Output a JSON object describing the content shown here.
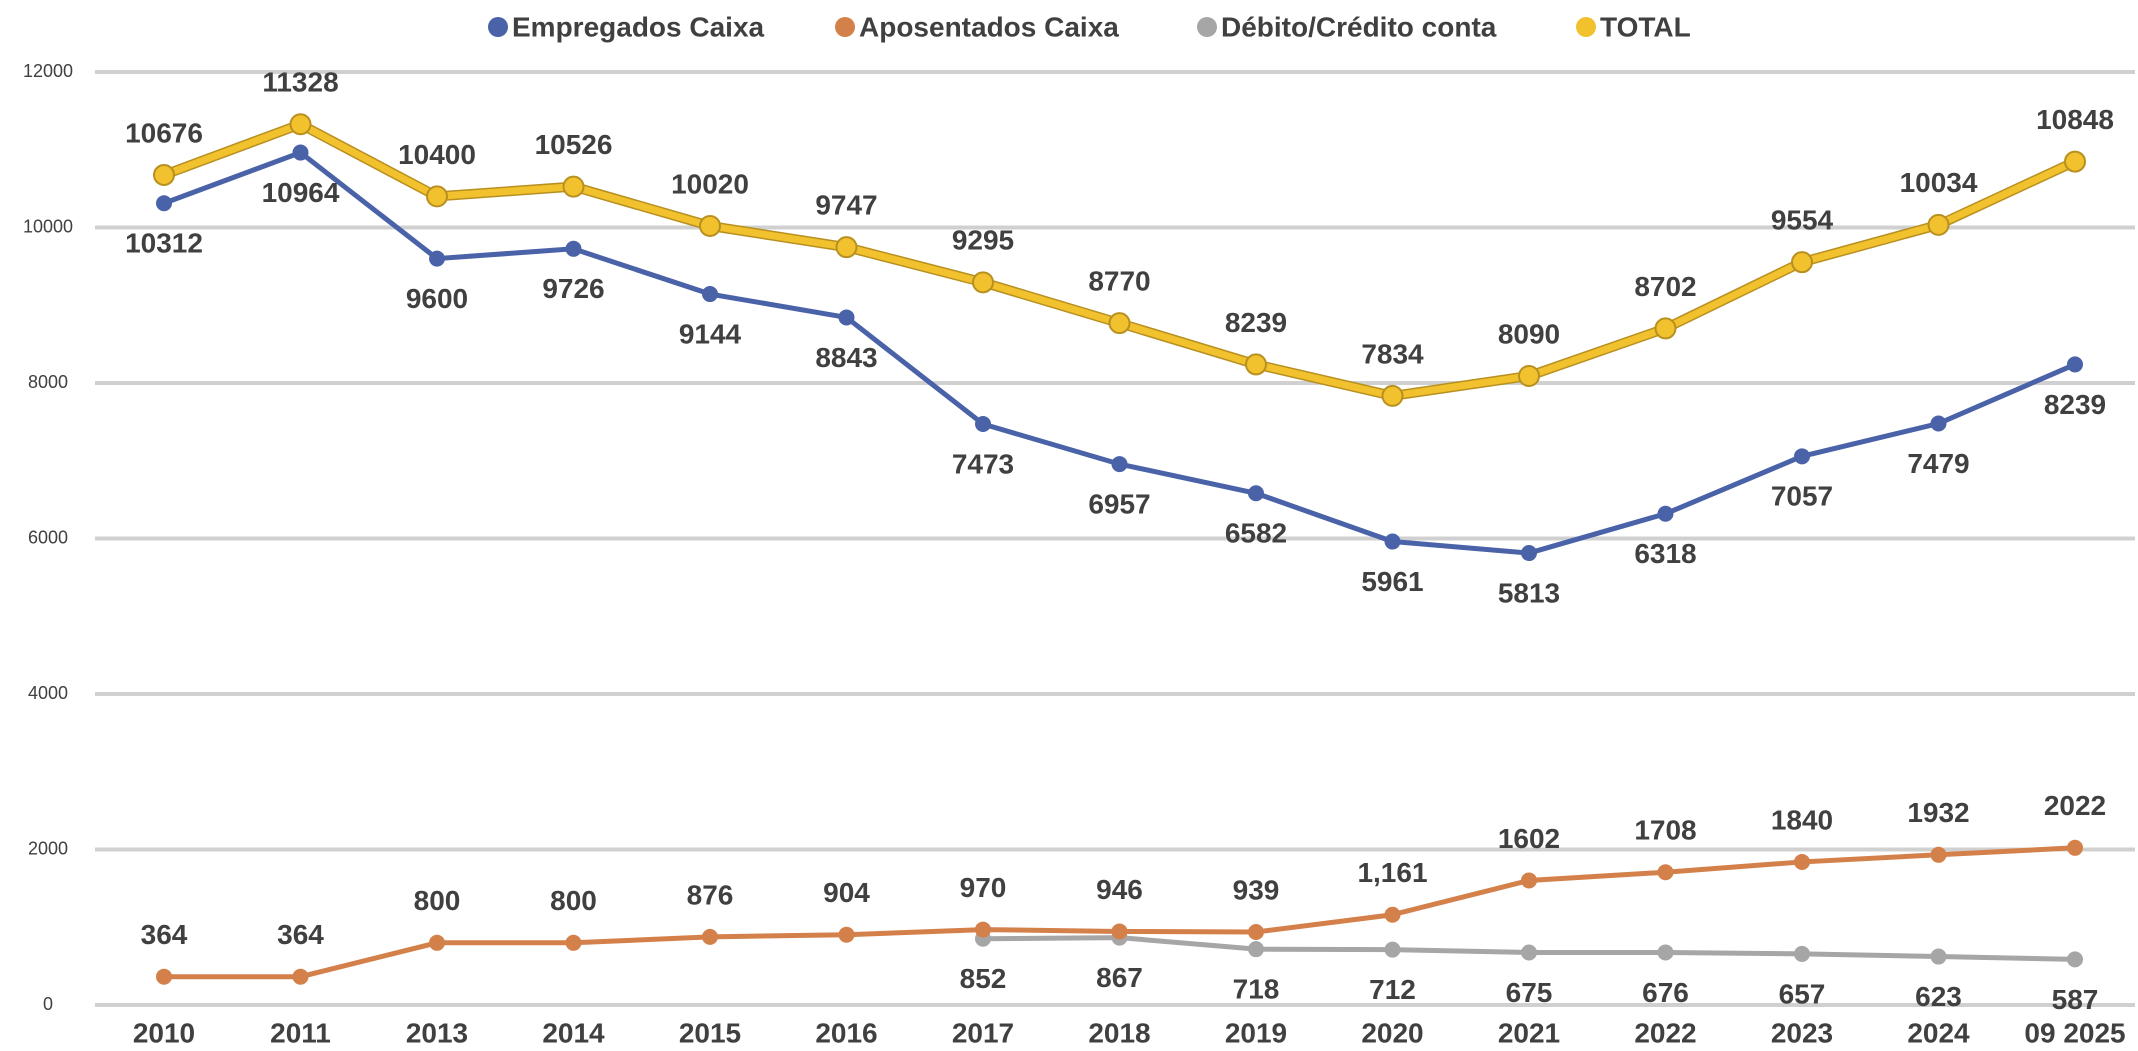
{
  "chart_data": {
    "type": "line",
    "categories": [
      "2010",
      "2011",
      "2013",
      "2014",
      "2015",
      "2016",
      "2017",
      "2018",
      "2019",
      "2020",
      "2021",
      "2022",
      "2023",
      "2024",
      "09 2025"
    ],
    "series": [
      {
        "name": "Empregados Caixa",
        "color": "#4a62a8",
        "values": [
          10312,
          10964,
          9600,
          9726,
          9144,
          8843,
          7473,
          6957,
          6582,
          5961,
          5813,
          6318,
          7057,
          7479,
          8239
        ]
      },
      {
        "name": "Aposentados Caixa",
        "color": "#d4804a",
        "values": [
          364,
          364,
          800,
          800,
          876,
          904,
          970,
          946,
          939,
          1161,
          1602,
          1708,
          1840,
          1932,
          2022
        ],
        "value_labels": [
          "364",
          "364",
          "800",
          "800",
          "876",
          "904",
          "970",
          "946",
          "939",
          "1,161",
          "1602",
          "1708",
          "1840",
          "1932",
          "2022"
        ]
      },
      {
        "name": "Débito/Crédito conta",
        "color": "#a6a6a6",
        "values": [
          null,
          null,
          null,
          null,
          null,
          null,
          852,
          867,
          718,
          712,
          675,
          676,
          657,
          623,
          587
        ]
      },
      {
        "name": "TOTAL",
        "color": "#f2c12e",
        "values": [
          10676,
          11328,
          10400,
          10526,
          10020,
          9747,
          9295,
          8770,
          8239,
          7834,
          8090,
          8702,
          9554,
          10034,
          10848
        ]
      }
    ],
    "ylim": [
      0,
      12000
    ],
    "yticks": [
      0,
      2000,
      4000,
      6000,
      8000,
      10000,
      12000
    ],
    "grid": true,
    "legend": "top"
  }
}
